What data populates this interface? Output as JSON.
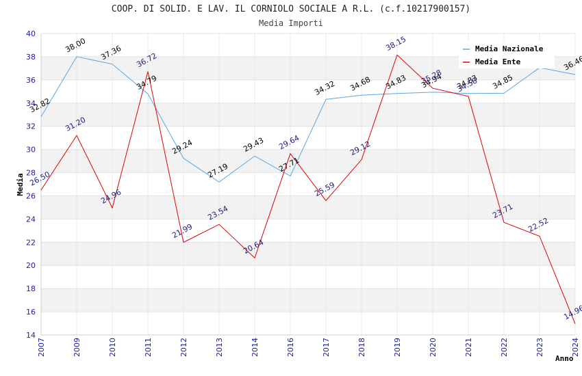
{
  "title": "COOP. DI SOLID. E LAV. IL CORNIOLO SOCIALE A R.L. (c.f.10217900157)",
  "subtitle": "Media Importi",
  "chart_data": {
    "type": "line",
    "categories": [
      "2007",
      "2009",
      "2010",
      "2011",
      "2012",
      "2013",
      "2014",
      "2016",
      "2017",
      "2018",
      "2019",
      "2020",
      "2021",
      "2022",
      "2023",
      "2024"
    ],
    "series": [
      {
        "name": "Media Nazionale",
        "color": "#5aa5e6",
        "values": [
          32.82,
          38.0,
          37.36,
          34.79,
          29.24,
          27.19,
          29.43,
          27.71,
          34.32,
          34.68,
          34.83,
          34.94,
          34.83,
          34.85,
          37.05,
          36.46
        ],
        "labels": [
          "32.82",
          "38.00",
          "37.36",
          "34.79",
          "29.24",
          "27.19",
          "29.43",
          "27.71",
          "34.32",
          "34.68",
          "34.83",
          "34.94",
          "34.83",
          "34.85",
          "",
          "36.46"
        ]
      },
      {
        "name": "Media Ente",
        "color": "#e00000",
        "values": [
          26.5,
          31.2,
          24.96,
          36.72,
          21.99,
          23.54,
          20.64,
          29.64,
          25.59,
          29.12,
          38.15,
          35.28,
          34.58,
          23.71,
          22.52,
          14.96
        ],
        "labels": [
          "26.50",
          "31.20",
          "24.96",
          "36.72",
          "21.99",
          "23.54",
          "20.64",
          "29.64",
          "25.59",
          "29.12",
          "38.15",
          "35.28",
          "34.58",
          "23.71",
          "22.52",
          "14.96"
        ]
      }
    ],
    "xlabel": "Anno",
    "ylabel": "Media",
    "ylim": [
      14,
      40
    ],
    "yticks": [
      14,
      16,
      18,
      20,
      22,
      24,
      26,
      28,
      30,
      32,
      34,
      36,
      38,
      40
    ],
    "grid": "horizontal alternating bands",
    "legend": "top-right"
  }
}
